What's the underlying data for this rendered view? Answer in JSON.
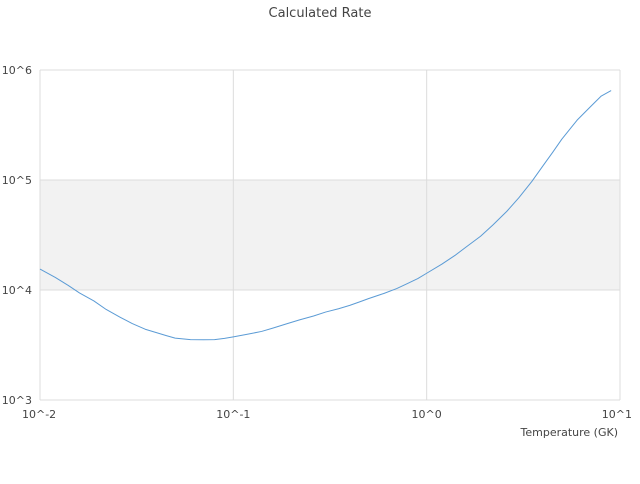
{
  "chart_data": {
    "type": "line",
    "title": "Calculated Rate",
    "xlabel": "Temperature (GK)",
    "ylabel": "",
    "xscale": "log",
    "yscale": "log",
    "xlim": [
      0.01,
      10
    ],
    "ylim": [
      1000,
      1000000
    ],
    "x_tick_labels": [
      "10^-2",
      "10^-1",
      "10^0",
      "10^1"
    ],
    "y_tick_labels": [
      "10^3",
      "10^4",
      "10^5",
      "10^6"
    ],
    "shaded_band_y": [
      10000,
      100000
    ],
    "grid": true,
    "legend": "none",
    "colors": {
      "line": "#5b9bd5",
      "band": "#f2f2f2",
      "grid": "#dcdcdc",
      "text": "#444444"
    },
    "series": [
      {
        "x": [
          0.01,
          0.012,
          0.014,
          0.016,
          0.019,
          0.022,
          0.026,
          0.03,
          0.035,
          0.04,
          0.045,
          0.05,
          0.06,
          0.07,
          0.08,
          0.09,
          0.1,
          0.12,
          0.14,
          0.16,
          0.19,
          0.22,
          0.26,
          0.3,
          0.35,
          0.4,
          0.45,
          0.5,
          0.6,
          0.7,
          0.8,
          0.9,
          1.0,
          1.2,
          1.4,
          1.6,
          1.9,
          2.2,
          2.6,
          3.0,
          3.5,
          4.0,
          4.5,
          5.0,
          6.0,
          7.0,
          8.0,
          9.0
        ],
        "y": [
          15500,
          13000,
          11000,
          9400,
          7950,
          6650,
          5650,
          4950,
          4400,
          4100,
          3850,
          3650,
          3540,
          3530,
          3540,
          3630,
          3750,
          3980,
          4200,
          4500,
          4950,
          5350,
          5800,
          6300,
          6750,
          7250,
          7800,
          8350,
          9300,
          10300,
          11500,
          12700,
          14200,
          17200,
          20600,
          24600,
          30800,
          39000,
          52000,
          69000,
          97000,
          135000,
          180000,
          235000,
          350000,
          460000,
          580000,
          650000
        ]
      }
    ]
  }
}
